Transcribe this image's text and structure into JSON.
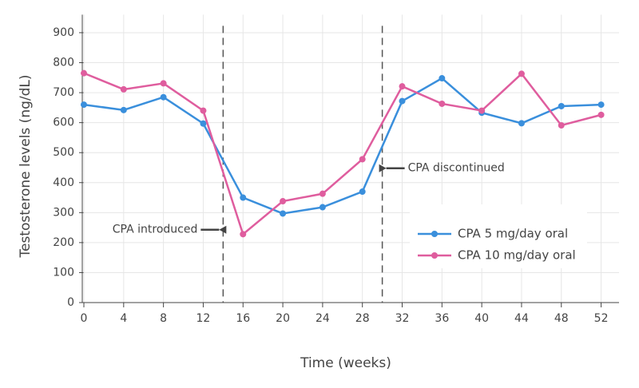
{
  "chart_data": {
    "type": "line",
    "x_label": "Time (weeks)",
    "y_label": "Testosterone levels (ng/dL)",
    "x": [
      0,
      4,
      8,
      12,
      16,
      20,
      24,
      28,
      32,
      36,
      40,
      44,
      48,
      52
    ],
    "series": [
      {
        "name": "CPA 5 mg/day oral",
        "color": "#3a8fdc",
        "values": [
          660,
          642,
          685,
          597,
          350,
          297,
          318,
          370,
          672,
          748,
          633,
          598,
          655,
          660
        ]
      },
      {
        "name": "CPA 10 mg/day oral",
        "color": "#df5d9e",
        "values": [
          765,
          711,
          731,
          640,
          228,
          338,
          363,
          478,
          721,
          663,
          640,
          763,
          591,
          626
        ]
      }
    ],
    "xlim": [
      0,
      53.8
    ],
    "ylim": [
      0,
      960
    ],
    "xticks": [
      0,
      4,
      8,
      12,
      16,
      20,
      24,
      28,
      32,
      36,
      40,
      44,
      48,
      52
    ],
    "yticks": [
      0,
      100,
      200,
      300,
      400,
      500,
      600,
      700,
      800,
      900
    ],
    "grid": true,
    "vlines": [
      14,
      30
    ],
    "annotations": [
      {
        "text": "CPA introduced",
        "x": 14,
        "y": 243,
        "side": "left"
      },
      {
        "text": "CPA discontinued",
        "x": 30,
        "y": 448,
        "side": "right"
      }
    ],
    "legend": "lower right"
  }
}
